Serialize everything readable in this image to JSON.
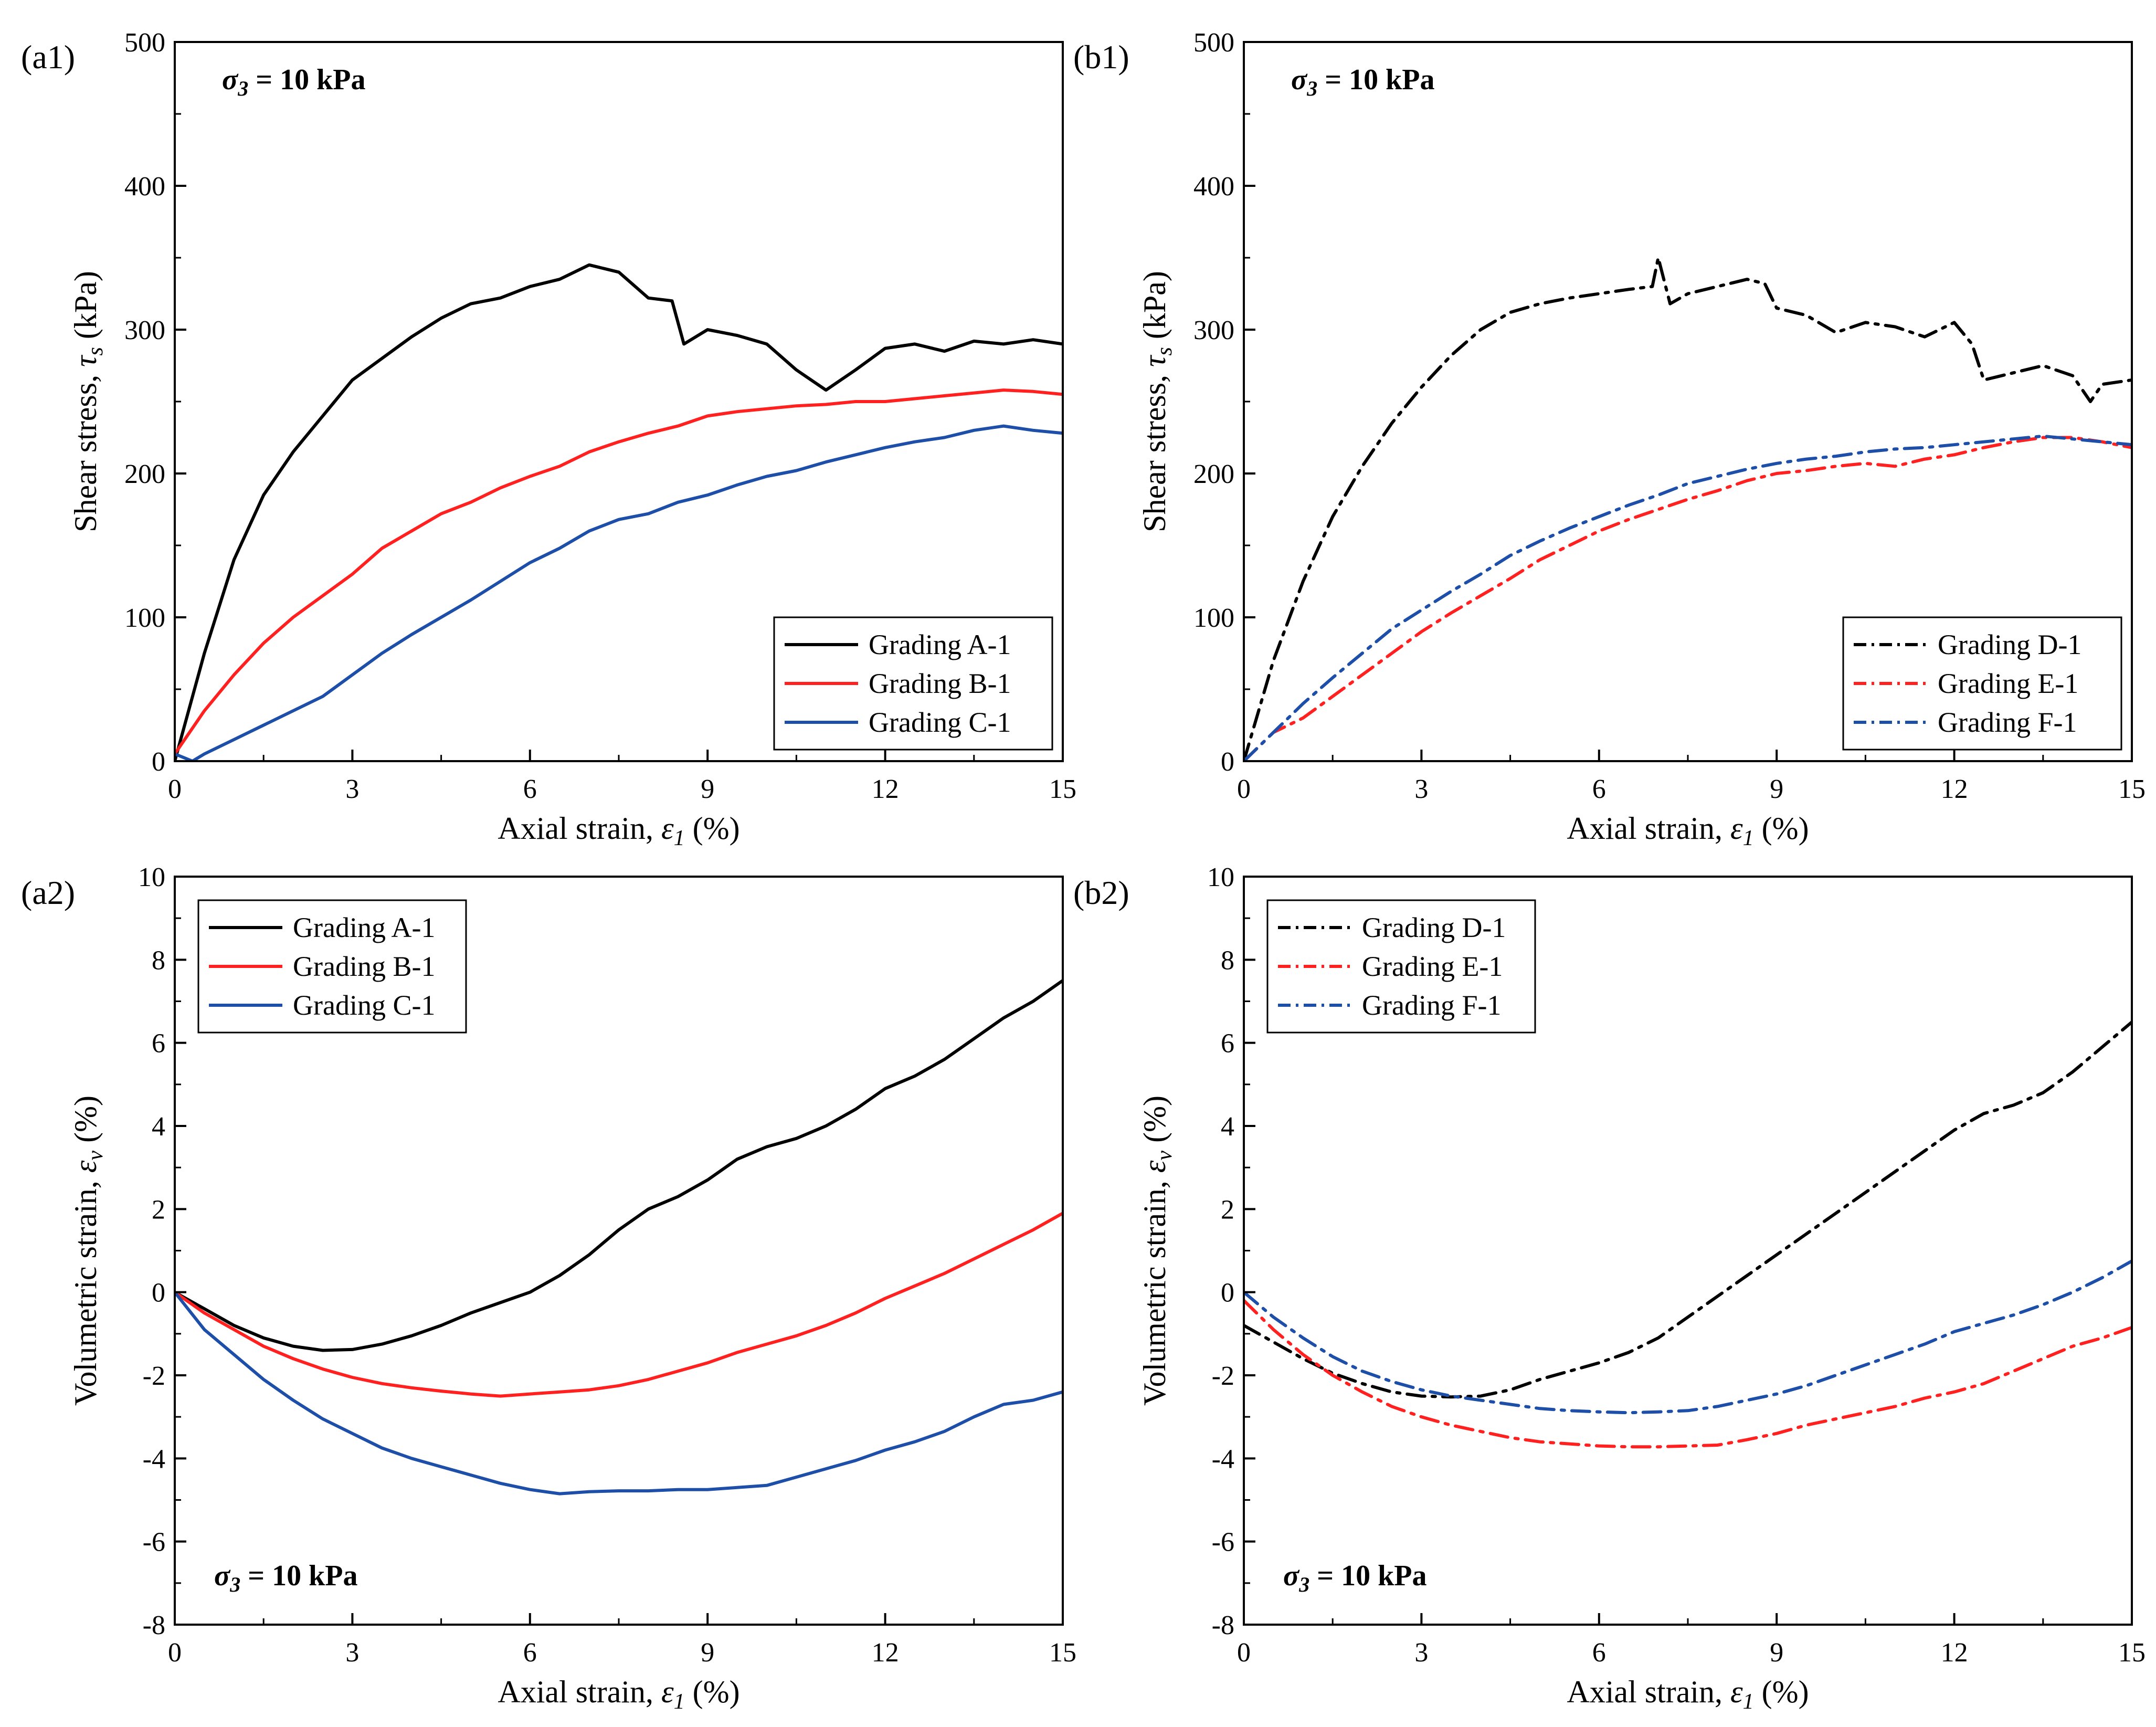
{
  "chart_data": [
    {
      "panel_label": "(a1)",
      "type": "line",
      "title": "",
      "annotation": {
        "symbol": "σ",
        "subscript": "3",
        "text": " = 10 kPa"
      },
      "xlabel": {
        "text": "Axial strain, ",
        "symbol": "ε",
        "subscript": "1",
        "unit": " (%)"
      },
      "ylabel": {
        "text": "Shear stress, ",
        "symbol": "τ",
        "subscript": "s",
        "unit": " (kPa)"
      },
      "xlim": [
        0,
        15
      ],
      "ylim": [
        0,
        500
      ],
      "xticks": [
        "0",
        "3",
        "6",
        "9",
        "12",
        "15"
      ],
      "yticks": [
        "0",
        "100",
        "200",
        "300",
        "400",
        "500"
      ],
      "legend_position": "bottom-right",
      "series": [
        {
          "name": "Grading A-1",
          "color": "#000000",
          "dash": "solid",
          "x": [
            0,
            0.5,
            1,
            1.5,
            2,
            2.5,
            3,
            3.5,
            4,
            4.5,
            5,
            5.5,
            6,
            6.5,
            7,
            7.5,
            8,
            8.4,
            8.6,
            9,
            9.5,
            10,
            10.5,
            11,
            11.5,
            12,
            12.5,
            13,
            13.5,
            14,
            14.5,
            15
          ],
          "values": [
            0,
            75,
            140,
            185,
            215,
            240,
            265,
            280,
            295,
            308,
            318,
            322,
            330,
            335,
            345,
            340,
            322,
            320,
            290,
            300,
            296,
            290,
            272,
            258,
            272,
            287,
            290,
            285,
            292,
            290,
            293,
            290
          ]
        },
        {
          "name": "Grading B-1",
          "color": "#ff2020",
          "dash": "solid",
          "x": [
            0,
            0.5,
            1,
            1.5,
            2,
            2.5,
            3,
            3.5,
            4,
            4.5,
            5,
            5.5,
            6,
            6.5,
            7,
            7.5,
            8,
            8.5,
            9,
            9.5,
            10,
            10.5,
            11,
            11.5,
            12,
            12.5,
            13,
            13.5,
            14,
            14.5,
            15
          ],
          "values": [
            5,
            35,
            60,
            82,
            100,
            115,
            130,
            148,
            160,
            172,
            180,
            190,
            198,
            205,
            215,
            222,
            228,
            233,
            240,
            243,
            245,
            247,
            248,
            250,
            250,
            252,
            254,
            256,
            258,
            257,
            255
          ]
        },
        {
          "name": "Grading C-1",
          "color": "#1e4fa8",
          "dash": "solid",
          "x": [
            0,
            0.3,
            0.5,
            1,
            1.5,
            2,
            2.5,
            3,
            3.5,
            4,
            4.5,
            5,
            5.5,
            6,
            6.5,
            7,
            7.5,
            8,
            8.5,
            9,
            9.5,
            10,
            10.5,
            11,
            11.5,
            12,
            12.5,
            13,
            13.5,
            14,
            14.5,
            15
          ],
          "values": [
            5,
            0,
            5,
            15,
            25,
            35,
            45,
            60,
            75,
            88,
            100,
            112,
            125,
            138,
            148,
            160,
            168,
            172,
            180,
            185,
            192,
            198,
            202,
            208,
            213,
            218,
            222,
            225,
            230,
            233,
            230,
            228
          ]
        }
      ]
    },
    {
      "panel_label": "(b1)",
      "type": "line",
      "title": "",
      "annotation": {
        "symbol": "σ",
        "subscript": "3",
        "text": " = 10 kPa"
      },
      "xlabel": {
        "text": "Axial strain, ",
        "symbol": "ε",
        "subscript": "1",
        "unit": " (%)"
      },
      "ylabel": {
        "text": "Shear stress, ",
        "symbol": "τ",
        "subscript": "s",
        "unit": " (kPa)"
      },
      "xlim": [
        0,
        15
      ],
      "ylim": [
        0,
        500
      ],
      "xticks": [
        "0",
        "3",
        "6",
        "9",
        "12",
        "15"
      ],
      "yticks": [
        "0",
        "100",
        "200",
        "300",
        "400",
        "500"
      ],
      "legend_position": "bottom-right",
      "series": [
        {
          "name": "Grading D-1",
          "color": "#000000",
          "dash": "dashdot",
          "x": [
            0,
            0.5,
            1,
            1.5,
            2,
            2.5,
            3,
            3.5,
            4,
            4.5,
            5,
            5.5,
            6,
            6.5,
            6.9,
            7.0,
            7.2,
            7.5,
            8,
            8.5,
            8.8,
            9,
            9.5,
            10,
            10.5,
            11,
            11.5,
            12,
            12.3,
            12.5,
            13,
            13.5,
            14,
            14.3,
            14.5,
            15
          ],
          "values": [
            0,
            70,
            125,
            170,
            205,
            235,
            260,
            282,
            300,
            312,
            318,
            322,
            325,
            328,
            330,
            350,
            318,
            325,
            330,
            335,
            332,
            315,
            310,
            298,
            305,
            302,
            295,
            305,
            290,
            265,
            270,
            275,
            268,
            250,
            262,
            265
          ]
        },
        {
          "name": "Grading E-1",
          "color": "#ff2020",
          "dash": "dashdot",
          "x": [
            0,
            0.5,
            1,
            1.5,
            2,
            2.5,
            3,
            3.5,
            4,
            4.5,
            5,
            5.5,
            6,
            6.5,
            7,
            7.5,
            8,
            8.5,
            9,
            9.5,
            10,
            10.5,
            11,
            11.5,
            12,
            12.5,
            13,
            13.5,
            14,
            14.5,
            15
          ],
          "values": [
            0,
            20,
            30,
            45,
            60,
            75,
            90,
            103,
            115,
            127,
            140,
            150,
            160,
            168,
            175,
            182,
            188,
            195,
            200,
            202,
            205,
            207,
            205,
            210,
            213,
            218,
            222,
            225,
            225,
            222,
            218
          ]
        },
        {
          "name": "Grading F-1",
          "color": "#1e4fa8",
          "dash": "dashdot",
          "x": [
            0,
            0.5,
            1,
            1.5,
            2,
            2.5,
            3,
            3.5,
            4,
            4.5,
            5,
            5.5,
            6,
            6.5,
            7,
            7.5,
            8,
            8.5,
            9,
            9.5,
            10,
            10.5,
            11,
            11.5,
            12,
            12.5,
            13,
            13.5,
            14,
            14.5,
            15
          ],
          "values": [
            0,
            20,
            40,
            58,
            75,
            92,
            105,
            118,
            130,
            143,
            153,
            162,
            170,
            178,
            185,
            193,
            198,
            203,
            207,
            210,
            212,
            215,
            217,
            218,
            220,
            222,
            224,
            226,
            224,
            222,
            220
          ]
        }
      ]
    },
    {
      "panel_label": "(a2)",
      "type": "line",
      "title": "",
      "annotation": {
        "symbol": "σ",
        "subscript": "3",
        "text": " = 10 kPa"
      },
      "xlabel": {
        "text": "Axial strain, ",
        "symbol": "ε",
        "subscript": "1",
        "unit": " (%)"
      },
      "ylabel": {
        "text": "Volumetric strain, ",
        "symbol": "ε",
        "subscript": "v",
        "unit": " (%)"
      },
      "xlim": [
        0,
        15
      ],
      "ylim": [
        -8,
        10
      ],
      "xticks": [
        "0",
        "3",
        "6",
        "9",
        "12",
        "15"
      ],
      "yticks": [
        "-8",
        "-6",
        "-4",
        "-2",
        "0",
        "2",
        "4",
        "6",
        "8",
        "10"
      ],
      "legend_position": "top-left",
      "series": [
        {
          "name": "Grading A-1",
          "color": "#000000",
          "dash": "solid",
          "x": [
            0,
            0.5,
            1,
            1.5,
            2,
            2.5,
            3,
            3.5,
            4,
            4.5,
            5,
            5.5,
            6,
            6.5,
            7,
            7.5,
            8,
            8.5,
            9,
            9.5,
            10,
            10.5,
            11,
            11.5,
            12,
            12.5,
            13,
            13.5,
            14,
            14.5,
            15
          ],
          "values": [
            0,
            -0.4,
            -0.8,
            -1.1,
            -1.3,
            -1.4,
            -1.38,
            -1.25,
            -1.05,
            -0.8,
            -0.5,
            -0.25,
            0.0,
            0.4,
            0.9,
            1.5,
            2.0,
            2.3,
            2.7,
            3.2,
            3.5,
            3.7,
            4.0,
            4.4,
            4.9,
            5.2,
            5.6,
            6.1,
            6.6,
            7.0,
            7.5
          ]
        },
        {
          "name": "Grading B-1",
          "color": "#ff2020",
          "dash": "solid",
          "x": [
            0,
            0.5,
            1,
            1.5,
            2,
            2.5,
            3,
            3.5,
            4,
            4.5,
            5,
            5.5,
            6,
            6.5,
            7,
            7.5,
            8,
            8.5,
            9,
            9.5,
            10,
            10.5,
            11,
            11.5,
            12,
            12.5,
            13,
            13.5,
            14,
            14.5,
            15
          ],
          "values": [
            0,
            -0.5,
            -0.9,
            -1.3,
            -1.6,
            -1.85,
            -2.05,
            -2.2,
            -2.3,
            -2.38,
            -2.45,
            -2.5,
            -2.45,
            -2.4,
            -2.35,
            -2.25,
            -2.1,
            -1.9,
            -1.7,
            -1.45,
            -1.25,
            -1.05,
            -0.8,
            -0.5,
            -0.15,
            0.15,
            0.45,
            0.8,
            1.15,
            1.5,
            1.9
          ]
        },
        {
          "name": "Grading C-1",
          "color": "#1e4fa8",
          "dash": "solid",
          "x": [
            0,
            0.5,
            1,
            1.5,
            2,
            2.5,
            3,
            3.5,
            4,
            4.5,
            5,
            5.5,
            6,
            6.5,
            7,
            7.5,
            8,
            8.5,
            9,
            9.5,
            10,
            10.5,
            11,
            11.5,
            12,
            12.5,
            13,
            13.5,
            14,
            14.5,
            15
          ],
          "values": [
            0,
            -0.9,
            -1.5,
            -2.1,
            -2.6,
            -3.05,
            -3.4,
            -3.75,
            -4.0,
            -4.2,
            -4.4,
            -4.6,
            -4.75,
            -4.85,
            -4.8,
            -4.78,
            -4.78,
            -4.75,
            -4.75,
            -4.7,
            -4.65,
            -4.45,
            -4.25,
            -4.05,
            -3.8,
            -3.6,
            -3.35,
            -3.0,
            -2.7,
            -2.6,
            -2.4
          ]
        }
      ]
    },
    {
      "panel_label": "(b2)",
      "type": "line",
      "title": "",
      "annotation": {
        "symbol": "σ",
        "subscript": "3",
        "text": " = 10 kPa"
      },
      "xlabel": {
        "text": "Axial strain, ",
        "symbol": "ε",
        "subscript": "1",
        "unit": " (%)"
      },
      "ylabel": {
        "text": "Volumetric strain, ",
        "symbol": "ε",
        "subscript": "v",
        "unit": " (%)"
      },
      "xlim": [
        0,
        15
      ],
      "ylim": [
        -8,
        10
      ],
      "xticks": [
        "0",
        "3",
        "6",
        "9",
        "12",
        "15"
      ],
      "yticks": [
        "-8",
        "-6",
        "-4",
        "-2",
        "0",
        "2",
        "4",
        "6",
        "8",
        "10"
      ],
      "legend_position": "top-left",
      "series": [
        {
          "name": "Grading D-1",
          "color": "#000000",
          "dash": "dashdot",
          "x": [
            0,
            0.5,
            1,
            1.5,
            2,
            2.5,
            3,
            3.5,
            4,
            4.5,
            5,
            5.5,
            6,
            6.5,
            7,
            7.5,
            8,
            8.5,
            9,
            9.5,
            10,
            10.5,
            11,
            11.5,
            12,
            12.5,
            13,
            13.5,
            14,
            14.5,
            15
          ],
          "values": [
            -0.8,
            -1.2,
            -1.6,
            -1.95,
            -2.2,
            -2.4,
            -2.5,
            -2.52,
            -2.5,
            -2.35,
            -2.1,
            -1.9,
            -1.7,
            -1.45,
            -1.1,
            -0.6,
            -0.1,
            0.4,
            0.9,
            1.4,
            1.9,
            2.4,
            2.9,
            3.4,
            3.9,
            4.3,
            4.5,
            4.8,
            5.3,
            5.9,
            6.5
          ]
        },
        {
          "name": "Grading E-1",
          "color": "#ff2020",
          "dash": "dashdot",
          "x": [
            0,
            0.5,
            1,
            1.5,
            2,
            2.5,
            3,
            3.5,
            4,
            4.5,
            5,
            5.5,
            6,
            6.5,
            7,
            7.5,
            8,
            8.5,
            9,
            9.5,
            10,
            10.5,
            11,
            11.5,
            12,
            12.5,
            13,
            13.5,
            14,
            14.5,
            15
          ],
          "values": [
            -0.2,
            -0.9,
            -1.5,
            -2.0,
            -2.4,
            -2.75,
            -3.0,
            -3.2,
            -3.35,
            -3.5,
            -3.6,
            -3.65,
            -3.7,
            -3.72,
            -3.72,
            -3.7,
            -3.68,
            -3.55,
            -3.4,
            -3.2,
            -3.05,
            -2.9,
            -2.75,
            -2.55,
            -2.4,
            -2.2,
            -1.9,
            -1.6,
            -1.3,
            -1.1,
            -0.85
          ]
        },
        {
          "name": "Grading F-1",
          "color": "#1e4fa8",
          "dash": "dashdot",
          "x": [
            0,
            0.5,
            1,
            1.5,
            2,
            2.5,
            3,
            3.5,
            4,
            4.5,
            5,
            5.5,
            6,
            6.5,
            7,
            7.5,
            8,
            8.5,
            9,
            9.5,
            10,
            10.5,
            11,
            11.5,
            12,
            12.5,
            13,
            13.5,
            14,
            14.5,
            15
          ],
          "values": [
            0,
            -0.6,
            -1.1,
            -1.55,
            -1.9,
            -2.15,
            -2.35,
            -2.5,
            -2.6,
            -2.7,
            -2.8,
            -2.85,
            -2.88,
            -2.9,
            -2.88,
            -2.85,
            -2.75,
            -2.6,
            -2.45,
            -2.25,
            -2.0,
            -1.75,
            -1.5,
            -1.25,
            -0.95,
            -0.75,
            -0.55,
            -0.3,
            0.0,
            0.35,
            0.75
          ]
        }
      ]
    }
  ]
}
